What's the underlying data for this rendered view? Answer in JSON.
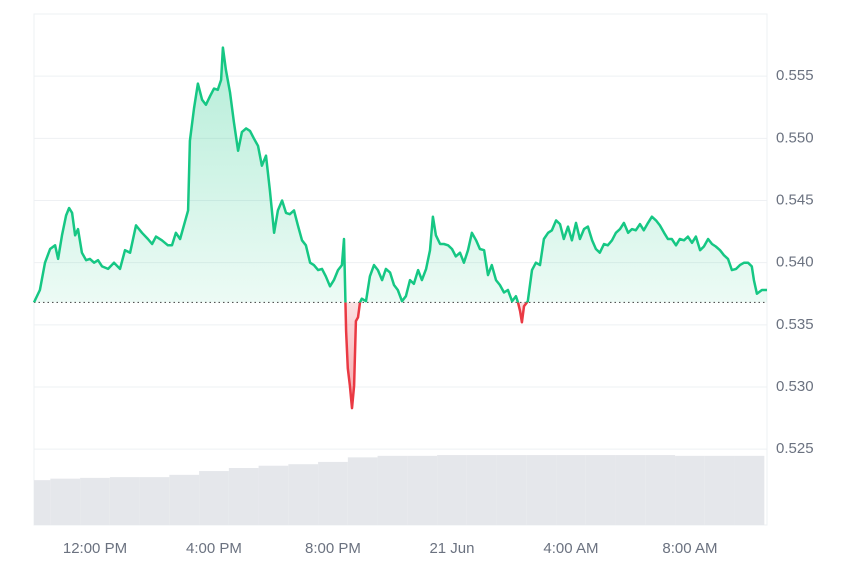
{
  "chart_data": {
    "type": "line",
    "x": [
      -2.05,
      -1.85,
      -1.68,
      -1.51,
      -1.34,
      -1.24,
      -1.11,
      -0.97,
      -0.87,
      -0.77,
      -0.67,
      -0.57,
      -0.44,
      -0.3,
      -0.17,
      -0.03,
      0.1,
      0.24,
      0.44,
      0.64,
      0.84,
      1.01,
      1.18,
      1.38,
      1.58,
      1.78,
      1.92,
      2.05,
      2.25,
      2.45,
      2.59,
      2.72,
      2.86,
      2.99,
      3.13,
      3.19,
      3.33,
      3.46,
      3.6,
      3.73,
      3.87,
      4.0,
      4.13,
      4.24,
      4.3,
      4.4,
      4.54,
      4.67,
      4.81,
      4.94,
      5.08,
      5.21,
      5.34,
      5.48,
      5.61,
      5.75,
      5.88,
      6.02,
      6.15,
      6.29,
      6.42,
      6.55,
      6.69,
      6.82,
      6.96,
      7.09,
      7.23,
      7.36,
      7.5,
      7.63,
      7.76,
      7.9,
      8.03,
      8.17,
      8.3,
      8.37,
      8.44,
      8.5,
      8.57,
      8.64,
      8.71,
      8.77,
      8.84,
      8.91,
      8.97,
      9.11,
      9.24,
      9.38,
      9.51,
      9.65,
      9.78,
      9.92,
      10.05,
      10.18,
      10.32,
      10.45,
      10.59,
      10.72,
      10.86,
      10.99,
      11.13,
      11.26,
      11.36,
      11.46,
      11.6,
      11.73,
      11.87,
      12.0,
      12.13,
      12.27,
      12.4,
      12.54,
      12.67,
      12.81,
      12.94,
      13.08,
      13.21,
      13.34,
      13.48,
      13.61,
      13.75,
      13.88,
      14.02,
      14.15,
      14.22,
      14.29,
      14.35,
      14.42,
      14.55,
      14.69,
      14.82,
      14.96,
      15.09,
      15.23,
      15.36,
      15.5,
      15.63,
      15.76,
      15.9,
      16.03,
      16.17,
      16.3,
      16.44,
      16.57,
      16.71,
      16.84,
      16.97,
      17.11,
      17.24,
      17.38,
      17.51,
      17.65,
      17.78,
      17.92,
      18.05,
      18.18,
      18.32,
      18.45,
      18.59,
      18.72,
      18.86,
      18.99,
      19.13,
      19.26,
      19.39,
      19.53,
      19.66,
      19.8,
      19.93,
      20.07,
      20.2,
      20.34,
      20.47,
      20.61,
      20.74,
      20.87,
      21.01,
      21.14,
      21.28,
      21.41,
      21.55,
      21.68,
      21.82,
      21.95,
      22.08,
      22.15,
      22.25,
      22.42,
      22.59
    ],
    "series": [
      {
        "values": [
          0.5368,
          0.5378,
          0.54,
          0.5411,
          0.5414,
          0.5403,
          0.5422,
          0.5438,
          0.5444,
          0.544,
          0.5422,
          0.5427,
          0.5408,
          0.5402,
          0.5403,
          0.54,
          0.5402,
          0.5397,
          0.5395,
          0.54,
          0.5395,
          0.541,
          0.5408,
          0.543,
          0.5424,
          0.5419,
          0.5415,
          0.5421,
          0.5418,
          0.5414,
          0.5414,
          0.5424,
          0.5419,
          0.543,
          0.5442,
          0.5498,
          0.5524,
          0.5544,
          0.5531,
          0.5527,
          0.5534,
          0.554,
          0.5539,
          0.5547,
          0.5573,
          0.5555,
          0.5537,
          0.5513,
          0.549,
          0.5505,
          0.5508,
          0.5506,
          0.55,
          0.5494,
          0.5478,
          0.5486,
          0.5458,
          0.5424,
          0.5442,
          0.545,
          0.544,
          0.5439,
          0.5442,
          0.543,
          0.5418,
          0.5414,
          0.54,
          0.5398,
          0.5394,
          0.5395,
          0.5389,
          0.5381,
          0.5386,
          0.5394,
          0.5398,
          0.5419,
          0.5345,
          0.5315,
          0.5301,
          0.5283,
          0.5301,
          0.5353,
          0.5356,
          0.5368,
          0.5371,
          0.5369,
          0.5389,
          0.5398,
          0.5394,
          0.5386,
          0.5395,
          0.5392,
          0.5382,
          0.5378,
          0.5369,
          0.5373,
          0.5386,
          0.5383,
          0.5394,
          0.5386,
          0.5395,
          0.541,
          0.5437,
          0.5422,
          0.5415,
          0.5415,
          0.5414,
          0.5411,
          0.5405,
          0.5408,
          0.54,
          0.541,
          0.5424,
          0.5418,
          0.5411,
          0.541,
          0.539,
          0.5398,
          0.5386,
          0.5382,
          0.5376,
          0.5378,
          0.5369,
          0.5373,
          0.5368,
          0.5361,
          0.5352,
          0.5365,
          0.5369,
          0.5394,
          0.54,
          0.5398,
          0.5419,
          0.5424,
          0.5426,
          0.5434,
          0.5431,
          0.5419,
          0.5429,
          0.5418,
          0.5432,
          0.5419,
          0.5427,
          0.5429,
          0.5418,
          0.5411,
          0.5408,
          0.5415,
          0.5414,
          0.5418,
          0.5424,
          0.5427,
          0.5432,
          0.5424,
          0.5427,
          0.5426,
          0.5431,
          0.5426,
          0.5432,
          0.5437,
          0.5434,
          0.543,
          0.5424,
          0.5419,
          0.5419,
          0.5414,
          0.5419,
          0.5418,
          0.5421,
          0.5416,
          0.5421,
          0.541,
          0.5413,
          0.5419,
          0.5415,
          0.5413,
          0.541,
          0.5406,
          0.5403,
          0.5394,
          0.5395,
          0.5398,
          0.54,
          0.54,
          0.5397,
          0.5386,
          0.5375,
          0.5378,
          0.5378
        ]
      }
    ],
    "baseline": 0.5368,
    "up_color": "#16c784",
    "down_color": "#ea3943",
    "xlim": [
      -2.05,
      22.59
    ],
    "xticks": [
      {
        "value": 0,
        "label": "12:00 PM"
      },
      {
        "value": 4,
        "label": "4:00 PM"
      },
      {
        "value": 8,
        "label": "8:00 PM"
      },
      {
        "value": 12,
        "label": "21 Jun"
      },
      {
        "value": 16,
        "label": "4:00 AM"
      },
      {
        "value": 20,
        "label": "8:00 AM"
      }
    ],
    "ylim": [
      0.5189,
      0.56
    ],
    "yticks": [
      0.525,
      {
        "value": 0.53,
        "label": "0.530"
      },
      0.535,
      {
        "value": 0.54,
        "label": "0.540"
      },
      0.545,
      {
        "value": 0.55,
        "label": "0.550"
      },
      0.555
    ],
    "grid": true,
    "volume": {
      "x": [
        -2,
        -1,
        0,
        1,
        2,
        3,
        4,
        5,
        6,
        7,
        8,
        9,
        10,
        11,
        12,
        13,
        14,
        15,
        16,
        17,
        18,
        19,
        20,
        21,
        22
      ],
      "values": [
        59,
        61,
        62,
        63,
        63,
        66,
        71,
        75,
        78,
        80,
        83,
        89,
        91,
        91,
        92,
        92,
        92,
        92,
        92,
        92,
        92,
        92,
        91,
        91,
        91
      ],
      "ylim": [
        0,
        100
      ],
      "color": "#e5e7eb"
    }
  }
}
